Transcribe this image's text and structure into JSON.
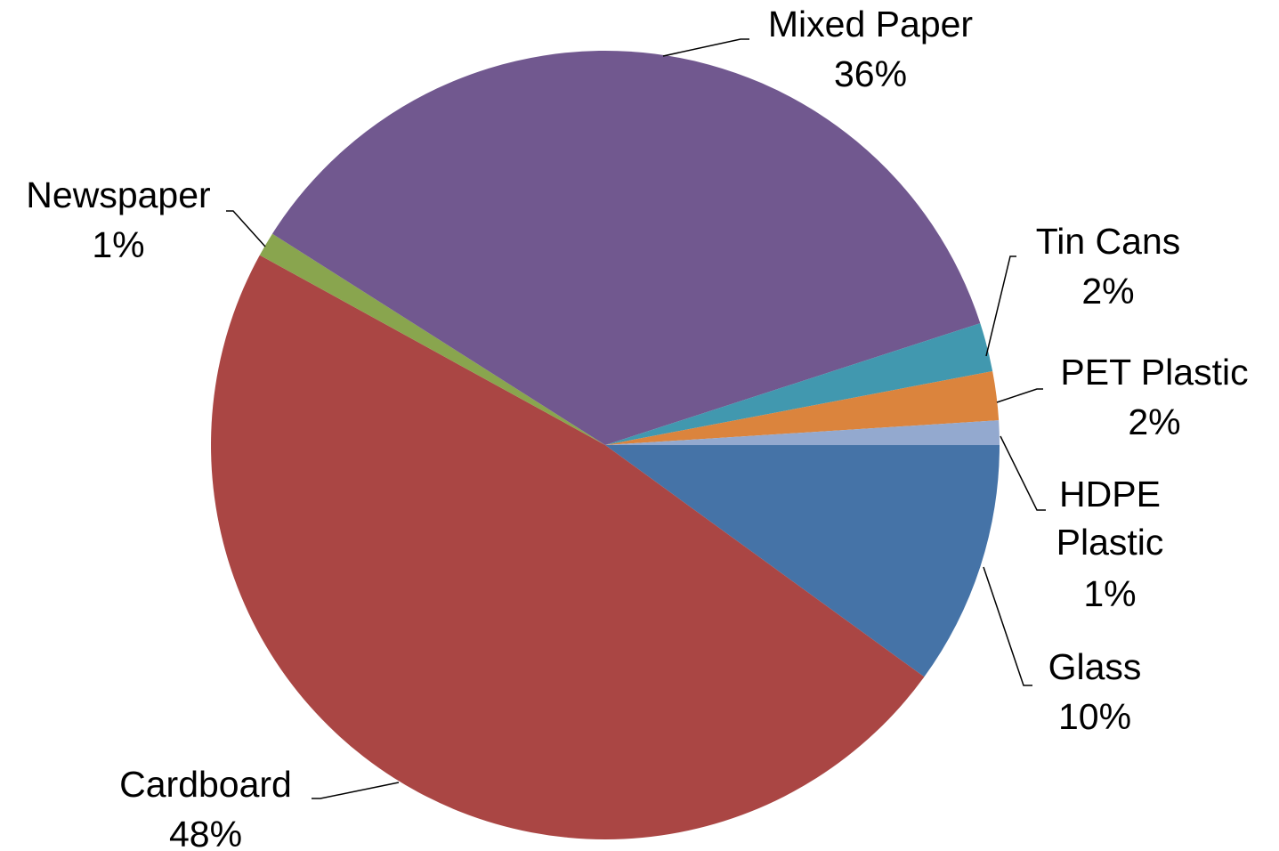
{
  "chart_data": {
    "type": "pie",
    "slices": [
      {
        "name": "Glass",
        "label": "Glass",
        "pct_label": "10%",
        "value": 10,
        "color": "#4573A7"
      },
      {
        "name": "Cardboard",
        "label": "Cardboard",
        "pct_label": "48%",
        "value": 48,
        "color": "#AA4644"
      },
      {
        "name": "Newspaper",
        "label": "Newspaper",
        "pct_label": "1%",
        "value": 1,
        "color": "#89A54E"
      },
      {
        "name": "Mixed Paper",
        "label": "Mixed Paper",
        "pct_label": "36%",
        "value": 36,
        "color": "#71588F"
      },
      {
        "name": "Tin Cans",
        "label": "Tin Cans",
        "pct_label": "2%",
        "value": 2,
        "color": "#4198AF"
      },
      {
        "name": "PET Plastic",
        "label": "PET Plastic",
        "pct_label": "2%",
        "value": 2,
        "color": "#DB843D"
      },
      {
        "name": "HDPE Plastic",
        "label_lines": [
          "HDPE",
          "Plastic"
        ],
        "pct_label": "1%",
        "value": 1,
        "color": "#93A9CF"
      }
    ],
    "start_angle": "3 o'clock",
    "direction": "clockwise",
    "legend": "none",
    "data_labels": "outside with leader lines"
  }
}
